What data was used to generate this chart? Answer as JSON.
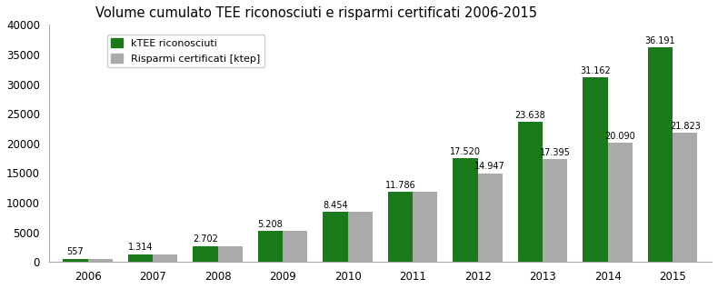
{
  "title": "Volume cumulato TEE riconosciuti e risparmi certificati 2006-2015",
  "years": [
    2006,
    2007,
    2008,
    2009,
    2010,
    2011,
    2012,
    2013,
    2014,
    2015
  ],
  "ktee": [
    557,
    1314,
    2702,
    5208,
    8454,
    11786,
    17520,
    23638,
    31162,
    36191
  ],
  "risparmi": [
    557,
    1314,
    2702,
    5208,
    8454,
    11786,
    14947,
    17395,
    20090,
    21823
  ],
  "ktee_labels": [
    "557",
    "1.314",
    "2.702",
    "5.208",
    "8.454",
    "11.786",
    "17.520",
    "23.638",
    "31.162",
    "36.191"
  ],
  "risparmi_labels": [
    "",
    "",
    "",
    "",
    "",
    "",
    "14.947",
    "17.395",
    "20.090",
    "21.823"
  ],
  "green_color": "#1a7a1a",
  "gray_color": "#aaaaaa",
  "bar_width": 0.38,
  "ylim": [
    0,
    40000
  ],
  "yticks": [
    0,
    5000,
    10000,
    15000,
    20000,
    25000,
    30000,
    35000,
    40000
  ],
  "legend_label_green": "kTEE riconosciuti",
  "legend_label_gray": "Risparmi certificati [ktep]",
  "title_fontsize": 10.5,
  "label_fontsize": 7,
  "tick_fontsize": 8.5,
  "background_color": "#ffffff"
}
